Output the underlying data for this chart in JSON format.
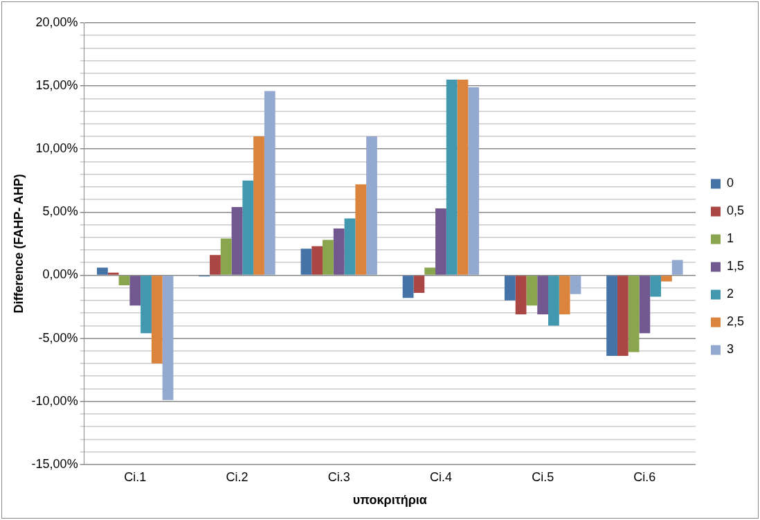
{
  "chart_data": {
    "type": "bar",
    "xlabel": "υποκριτήρια",
    "ylabel": "Difference (FAHP- AHP)",
    "categories": [
      "Ci.1",
      "Ci.2",
      "Ci.3",
      "Ci.4",
      "Ci.5",
      "Ci.6"
    ],
    "series": [
      {
        "name": "0",
        "color": "#4572a7",
        "values": [
          0.6,
          -0.1,
          2.1,
          -1.8,
          -2.0,
          -6.4
        ]
      },
      {
        "name": "0,5",
        "color": "#aa4643",
        "values": [
          0.2,
          1.6,
          2.3,
          -1.4,
          -3.1,
          -6.4
        ]
      },
      {
        "name": "1",
        "color": "#89a54e",
        "values": [
          -0.8,
          2.9,
          2.8,
          0.6,
          -2.4,
          -6.1
        ]
      },
      {
        "name": "1,5",
        "color": "#71588f",
        "values": [
          -2.4,
          5.4,
          3.7,
          5.3,
          -3.1,
          -4.6
        ]
      },
      {
        "name": "2",
        "color": "#4198af",
        "values": [
          -4.6,
          7.5,
          4.5,
          15.5,
          -4.0,
          -1.7
        ]
      },
      {
        "name": "2,5",
        "color": "#db843d",
        "values": [
          -7.0,
          11.0,
          7.2,
          15.5,
          -3.1,
          -0.5
        ]
      },
      {
        "name": "3",
        "color": "#93a9cf",
        "values": [
          -9.9,
          14.6,
          11.0,
          14.9,
          -1.5,
          1.2
        ]
      }
    ],
    "ylim": [
      -15,
      20
    ],
    "yticks": [
      {
        "value": -15,
        "label": "-15,00%"
      },
      {
        "value": -14,
        "label": null
      },
      {
        "value": -13,
        "label": null
      },
      {
        "value": -12,
        "label": null
      },
      {
        "value": -11,
        "label": null
      },
      {
        "value": -10,
        "label": "-10,00%"
      },
      {
        "value": -9,
        "label": null
      },
      {
        "value": -8,
        "label": null
      },
      {
        "value": -7,
        "label": null
      },
      {
        "value": -6,
        "label": null
      },
      {
        "value": -5,
        "label": "-5,00%"
      },
      {
        "value": -4,
        "label": null
      },
      {
        "value": -3,
        "label": null
      },
      {
        "value": -2,
        "label": null
      },
      {
        "value": -1,
        "label": null
      },
      {
        "value": 0,
        "label": "0,00%"
      },
      {
        "value": 1,
        "label": null
      },
      {
        "value": 2,
        "label": null
      },
      {
        "value": 3,
        "label": null
      },
      {
        "value": 4,
        "label": null
      },
      {
        "value": 5,
        "label": "5,00%"
      },
      {
        "value": 6,
        "label": null
      },
      {
        "value": 7,
        "label": null
      },
      {
        "value": 8,
        "label": null
      },
      {
        "value": 9,
        "label": null
      },
      {
        "value": 10,
        "label": "10,00%"
      },
      {
        "value": 11,
        "label": null
      },
      {
        "value": 12,
        "label": null
      },
      {
        "value": 13,
        "label": null
      },
      {
        "value": 14,
        "label": null
      },
      {
        "value": 15,
        "label": "15,00%"
      },
      {
        "value": 16,
        "label": null
      },
      {
        "value": 17,
        "label": null
      },
      {
        "value": 18,
        "label": null
      },
      {
        "value": 19,
        "label": null
      },
      {
        "value": 20,
        "label": "20,00%"
      }
    ],
    "grid": "y",
    "legend": "right"
  }
}
